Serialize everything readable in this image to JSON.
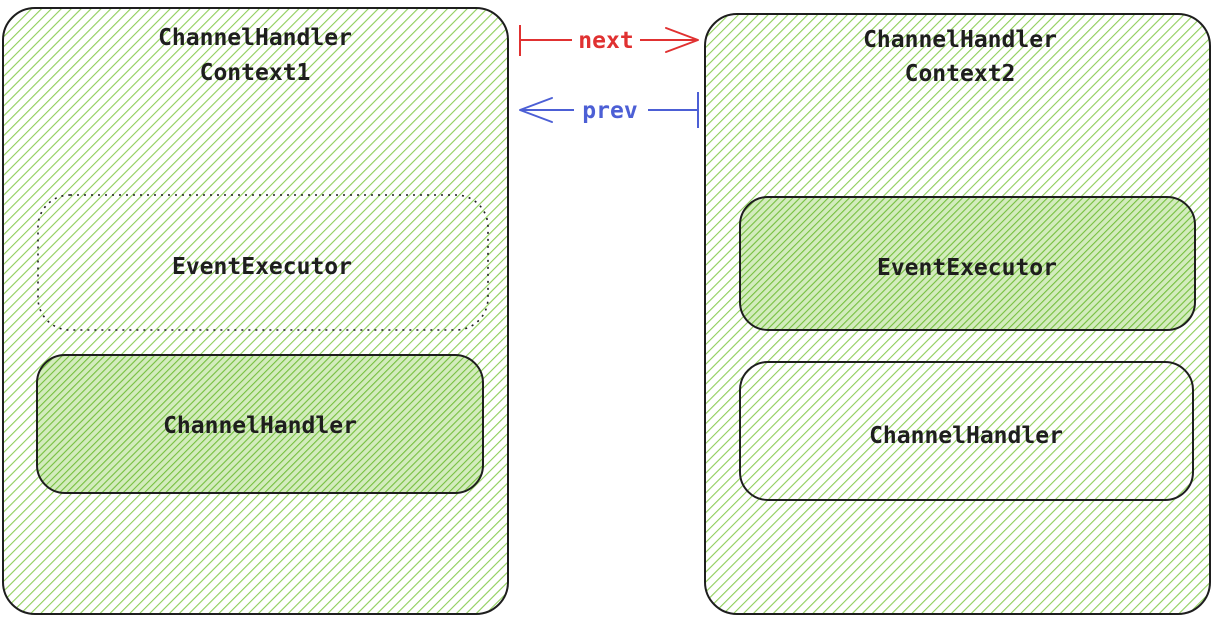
{
  "context1": {
    "title_line1": "ChannelHandler",
    "title_line2": "Context1",
    "executor_label": "EventExecutor",
    "handler_label": "ChannelHandler"
  },
  "context2": {
    "title_line1": "ChannelHandler",
    "title_line2": "Context2",
    "executor_label": "EventExecutor",
    "handler_label": "ChannelHandler"
  },
  "arrows": {
    "next_label": "next",
    "prev_label": "prev",
    "next_color": "#e03131",
    "prev_color": "#4c5fd5"
  },
  "colors": {
    "hatch": "#8fce5a",
    "hatch_dense": "#76bf3f",
    "stroke": "#1e1e1e"
  }
}
